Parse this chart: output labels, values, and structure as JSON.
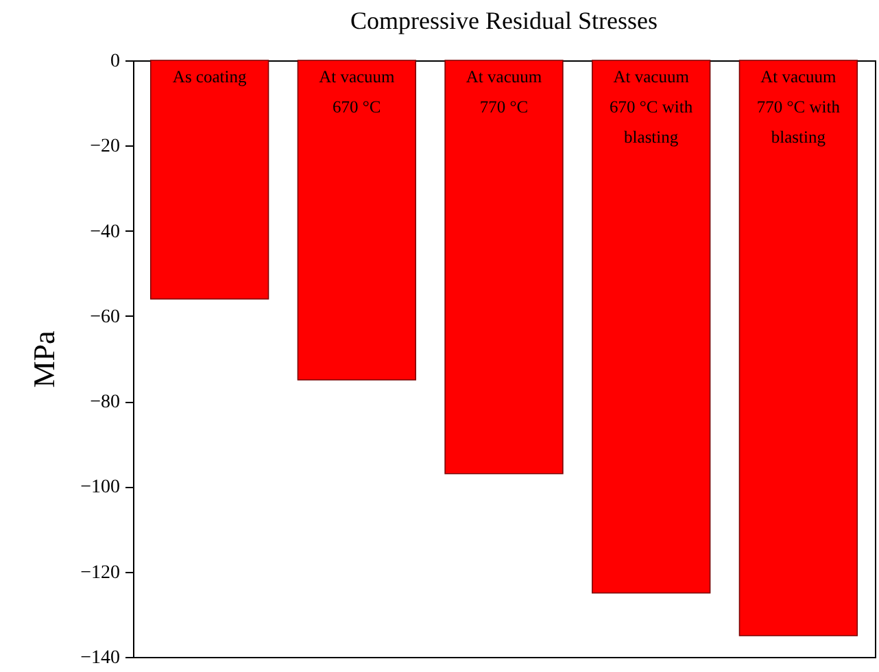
{
  "chart_data": {
    "type": "bar",
    "title": "Compressive Residual Stresses",
    "ylabel": "MPa",
    "categories": [
      "As coating",
      "At vacuum 670 °C",
      "At vacuum 770 °C",
      "At vacuum 670 °C with blasting",
      "At vacuum 770 °C with blasting"
    ],
    "values": [
      -56,
      -75,
      -97,
      -125,
      -135
    ],
    "color": "#ff0000",
    "ylim": [
      -140,
      0
    ],
    "yticks": [
      0,
      -20,
      -40,
      -60,
      -80,
      -100,
      -120,
      -140
    ],
    "grid": false
  }
}
